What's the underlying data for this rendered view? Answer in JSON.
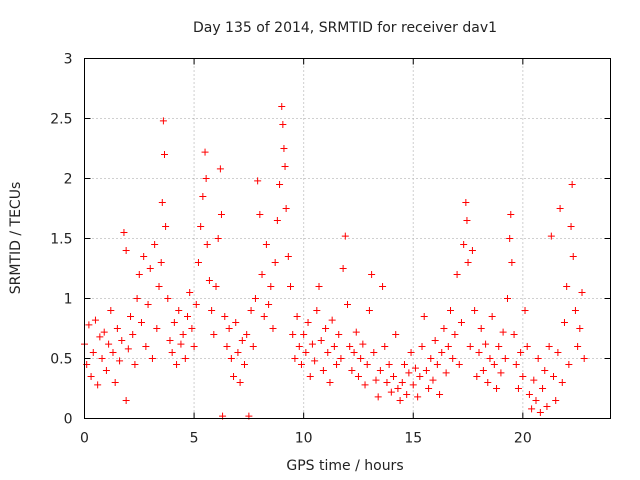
{
  "chart_data": {
    "type": "scatter",
    "title": "Day 135 of 2014, SRMTID for receiver dav1",
    "xlabel": "GPS time / hours",
    "ylabel": "SRMTID / TECUs",
    "xlim": [
      0,
      24
    ],
    "ylim": [
      0,
      3
    ],
    "xticks": [
      0,
      5,
      10,
      15,
      20
    ],
    "yticks": [
      0,
      0.5,
      1,
      1.5,
      2,
      2.5,
      3
    ],
    "xtick_labels": [
      "0",
      "5",
      "10",
      "15",
      "20"
    ],
    "ytick_labels": [
      "0",
      "0.5",
      "1",
      "1.5",
      "2",
      "2.5",
      "3"
    ],
    "grid": true,
    "marker": "+",
    "series": [
      {
        "name": "dav1",
        "color": "#ff0000",
        "points": [
          [
            0.0,
            0.62
          ],
          [
            0.1,
            0.45
          ],
          [
            0.2,
            0.78
          ],
          [
            0.3,
            0.35
          ],
          [
            0.4,
            0.55
          ],
          [
            0.5,
            0.82
          ],
          [
            0.6,
            0.28
          ],
          [
            0.7,
            0.68
          ],
          [
            0.8,
            0.5
          ],
          [
            0.9,
            0.72
          ],
          [
            1.0,
            0.4
          ],
          [
            1.1,
            0.62
          ],
          [
            1.2,
            0.9
          ],
          [
            1.3,
            0.55
          ],
          [
            1.4,
            0.3
          ],
          [
            1.5,
            0.75
          ],
          [
            1.6,
            0.48
          ],
          [
            1.7,
            0.65
          ],
          [
            1.8,
            1.55
          ],
          [
            1.9,
            1.4
          ],
          [
            1.9,
            0.15
          ],
          [
            2.0,
            0.58
          ],
          [
            2.1,
            0.85
          ],
          [
            2.2,
            0.7
          ],
          [
            2.3,
            0.45
          ],
          [
            2.4,
            1.0
          ],
          [
            2.5,
            1.2
          ],
          [
            2.6,
            0.8
          ],
          [
            2.7,
            1.35
          ],
          [
            2.8,
            0.6
          ],
          [
            2.9,
            0.95
          ],
          [
            3.0,
            1.25
          ],
          [
            3.1,
            0.5
          ],
          [
            3.2,
            1.45
          ],
          [
            3.3,
            0.75
          ],
          [
            3.4,
            1.1
          ],
          [
            3.5,
            1.3
          ],
          [
            3.55,
            1.8
          ],
          [
            3.6,
            2.48
          ],
          [
            3.65,
            2.2
          ],
          [
            3.7,
            1.6
          ],
          [
            3.8,
            1.0
          ],
          [
            3.9,
            0.65
          ],
          [
            4.0,
            0.55
          ],
          [
            4.1,
            0.8
          ],
          [
            4.2,
            0.45
          ],
          [
            4.3,
            0.9
          ],
          [
            4.4,
            0.62
          ],
          [
            4.5,
            0.7
          ],
          [
            4.6,
            0.5
          ],
          [
            4.7,
            0.85
          ],
          [
            4.8,
            1.05
          ],
          [
            4.9,
            0.75
          ],
          [
            5.0,
            0.6
          ],
          [
            5.1,
            0.95
          ],
          [
            5.2,
            1.3
          ],
          [
            5.3,
            1.6
          ],
          [
            5.4,
            1.85
          ],
          [
            5.5,
            2.22
          ],
          [
            5.55,
            2.0
          ],
          [
            5.6,
            1.45
          ],
          [
            5.7,
            1.15
          ],
          [
            5.8,
            0.9
          ],
          [
            5.9,
            0.7
          ],
          [
            6.0,
            1.1
          ],
          [
            6.1,
            1.5
          ],
          [
            6.2,
            2.08
          ],
          [
            6.25,
            1.7
          ],
          [
            6.3,
            0.02
          ],
          [
            6.4,
            0.85
          ],
          [
            6.5,
            0.6
          ],
          [
            6.6,
            0.75
          ],
          [
            6.7,
            0.5
          ],
          [
            6.8,
            0.35
          ],
          [
            6.9,
            0.8
          ],
          [
            7.0,
            0.55
          ],
          [
            7.1,
            0.3
          ],
          [
            7.2,
            0.65
          ],
          [
            7.3,
            0.45
          ],
          [
            7.4,
            0.7
          ],
          [
            7.5,
            0.02
          ],
          [
            7.6,
            0.9
          ],
          [
            7.7,
            0.6
          ],
          [
            7.8,
            1.0
          ],
          [
            7.9,
            1.98
          ],
          [
            8.0,
            1.7
          ],
          [
            8.1,
            1.2
          ],
          [
            8.2,
            0.85
          ],
          [
            8.3,
            1.45
          ],
          [
            8.4,
            0.95
          ],
          [
            8.5,
            1.1
          ],
          [
            8.6,
            0.75
          ],
          [
            8.7,
            1.3
          ],
          [
            8.8,
            1.65
          ],
          [
            8.9,
            1.95
          ],
          [
            9.0,
            2.6
          ],
          [
            9.05,
            2.45
          ],
          [
            9.1,
            2.25
          ],
          [
            9.15,
            2.1
          ],
          [
            9.2,
            1.75
          ],
          [
            9.3,
            1.35
          ],
          [
            9.4,
            1.1
          ],
          [
            9.5,
            0.7
          ],
          [
            9.6,
            0.5
          ],
          [
            9.7,
            0.85
          ],
          [
            9.8,
            0.6
          ],
          [
            9.9,
            0.45
          ],
          [
            10.0,
            0.7
          ],
          [
            10.1,
            0.55
          ],
          [
            10.2,
            0.8
          ],
          [
            10.3,
            0.35
          ],
          [
            10.4,
            0.62
          ],
          [
            10.5,
            0.48
          ],
          [
            10.6,
            0.9
          ],
          [
            10.7,
            1.1
          ],
          [
            10.8,
            0.65
          ],
          [
            10.9,
            0.4
          ],
          [
            11.0,
            0.75
          ],
          [
            11.1,
            0.55
          ],
          [
            11.2,
            0.3
          ],
          [
            11.3,
            0.82
          ],
          [
            11.4,
            0.6
          ],
          [
            11.5,
            0.45
          ],
          [
            11.6,
            0.7
          ],
          [
            11.7,
            0.5
          ],
          [
            11.8,
            1.25
          ],
          [
            11.9,
            1.52
          ],
          [
            12.0,
            0.95
          ],
          [
            12.1,
            0.6
          ],
          [
            12.2,
            0.4
          ],
          [
            12.3,
            0.55
          ],
          [
            12.4,
            0.72
          ],
          [
            12.5,
            0.35
          ],
          [
            12.6,
            0.5
          ],
          [
            12.7,
            0.62
          ],
          [
            12.8,
            0.28
          ],
          [
            12.9,
            0.45
          ],
          [
            13.0,
            0.9
          ],
          [
            13.1,
            1.2
          ],
          [
            13.2,
            0.55
          ],
          [
            13.3,
            0.32
          ],
          [
            13.4,
            0.18
          ],
          [
            13.5,
            0.4
          ],
          [
            13.6,
            1.1
          ],
          [
            13.7,
            0.6
          ],
          [
            13.8,
            0.3
          ],
          [
            13.9,
            0.45
          ],
          [
            14.0,
            0.22
          ],
          [
            14.1,
            0.35
          ],
          [
            14.2,
            0.7
          ],
          [
            14.3,
            0.25
          ],
          [
            14.4,
            0.15
          ],
          [
            14.5,
            0.3
          ],
          [
            14.6,
            0.45
          ],
          [
            14.7,
            0.2
          ],
          [
            14.8,
            0.38
          ],
          [
            14.9,
            0.55
          ],
          [
            15.0,
            0.28
          ],
          [
            15.1,
            0.42
          ],
          [
            15.2,
            0.18
          ],
          [
            15.3,
            0.35
          ],
          [
            15.4,
            0.6
          ],
          [
            15.5,
            0.85
          ],
          [
            15.6,
            0.4
          ],
          [
            15.7,
            0.25
          ],
          [
            15.8,
            0.5
          ],
          [
            15.9,
            0.32
          ],
          [
            16.0,
            0.65
          ],
          [
            16.1,
            0.45
          ],
          [
            16.2,
            0.2
          ],
          [
            16.3,
            0.55
          ],
          [
            16.4,
            0.75
          ],
          [
            16.5,
            0.38
          ],
          [
            16.6,
            0.6
          ],
          [
            16.7,
            0.9
          ],
          [
            16.8,
            0.5
          ],
          [
            16.9,
            0.7
          ],
          [
            17.0,
            1.2
          ],
          [
            17.1,
            0.45
          ],
          [
            17.2,
            0.8
          ],
          [
            17.3,
            1.45
          ],
          [
            17.4,
            1.8
          ],
          [
            17.45,
            1.65
          ],
          [
            17.5,
            1.3
          ],
          [
            17.6,
            0.6
          ],
          [
            17.7,
            1.4
          ],
          [
            17.8,
            0.9
          ],
          [
            17.9,
            0.35
          ],
          [
            18.0,
            0.55
          ],
          [
            18.1,
            0.75
          ],
          [
            18.2,
            0.4
          ],
          [
            18.3,
            0.62
          ],
          [
            18.4,
            0.3
          ],
          [
            18.5,
            0.5
          ],
          [
            18.6,
            0.85
          ],
          [
            18.7,
            0.45
          ],
          [
            18.8,
            0.25
          ],
          [
            18.9,
            0.6
          ],
          [
            19.0,
            0.38
          ],
          [
            19.1,
            0.72
          ],
          [
            19.2,
            0.5
          ],
          [
            19.3,
            1.0
          ],
          [
            19.4,
            1.5
          ],
          [
            19.45,
            1.7
          ],
          [
            19.5,
            1.3
          ],
          [
            19.6,
            0.7
          ],
          [
            19.7,
            0.45
          ],
          [
            19.8,
            0.25
          ],
          [
            19.9,
            0.55
          ],
          [
            20.0,
            0.35
          ],
          [
            20.1,
            0.9
          ],
          [
            20.2,
            0.6
          ],
          [
            20.3,
            0.2
          ],
          [
            20.4,
            0.08
          ],
          [
            20.5,
            0.32
          ],
          [
            20.6,
            0.15
          ],
          [
            20.7,
            0.5
          ],
          [
            20.8,
            0.05
          ],
          [
            20.9,
            0.25
          ],
          [
            21.0,
            0.4
          ],
          [
            21.1,
            0.1
          ],
          [
            21.2,
            0.6
          ],
          [
            21.3,
            1.52
          ],
          [
            21.4,
            0.35
          ],
          [
            21.5,
            0.15
          ],
          [
            21.6,
            0.55
          ],
          [
            21.7,
            1.75
          ],
          [
            21.8,
            0.3
          ],
          [
            21.9,
            0.8
          ],
          [
            22.0,
            1.1
          ],
          [
            22.1,
            0.45
          ],
          [
            22.2,
            1.6
          ],
          [
            22.25,
            1.95
          ],
          [
            22.3,
            1.35
          ],
          [
            22.4,
            0.9
          ],
          [
            22.5,
            0.6
          ],
          [
            22.6,
            0.75
          ],
          [
            22.7,
            1.05
          ],
          [
            22.8,
            0.5
          ]
        ]
      }
    ]
  }
}
